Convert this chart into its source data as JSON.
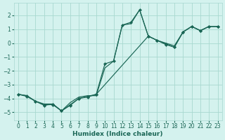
{
  "xlabel": "Humidex (Indice chaleur)",
  "bg_color": "#d4f2ee",
  "grid_color": "#a8d8d0",
  "line_color": "#1a6655",
  "xlim": [
    -0.5,
    23.5
  ],
  "ylim": [
    -5.6,
    2.9
  ],
  "yticks": [
    -5,
    -4,
    -3,
    -2,
    -1,
    0,
    1,
    2
  ],
  "xticks": [
    0,
    1,
    2,
    3,
    4,
    5,
    6,
    7,
    8,
    9,
    10,
    11,
    12,
    13,
    14,
    15,
    16,
    17,
    18,
    19,
    20,
    21,
    22,
    23
  ],
  "line1_x": [
    0,
    1,
    2,
    3,
    4,
    5,
    6,
    7,
    8,
    9,
    10,
    11,
    12,
    13,
    14,
    15,
    16,
    17,
    18,
    19,
    20,
    21,
    22,
    23
  ],
  "line1_y": [
    -3.7,
    -3.8,
    -4.2,
    -4.4,
    -4.4,
    -4.9,
    -4.3,
    -3.9,
    -3.8,
    -3.8,
    -1.8,
    -1.3,
    1.3,
    1.4,
    2.4,
    0.5,
    0.2,
    0.0,
    -0.2,
    0.8,
    1.2,
    0.9,
    1.2,
    1.2
  ],
  "line2_x": [
    0,
    1,
    2,
    3,
    4,
    5,
    6,
    7,
    8,
    9,
    10,
    11,
    12,
    13,
    14,
    15,
    16,
    17,
    18,
    19,
    20,
    21,
    22,
    23
  ],
  "line2_y": [
    -3.7,
    -3.8,
    -4.2,
    -4.5,
    -4.4,
    -4.9,
    -4.5,
    -4.0,
    -3.9,
    -3.7,
    -1.5,
    -1.3,
    1.3,
    1.5,
    2.4,
    0.5,
    0.2,
    -0.1,
    -0.3,
    0.8,
    1.2,
    0.9,
    1.2,
    1.2
  ],
  "line3_x": [
    0,
    1,
    2,
    3,
    4,
    5,
    6,
    7,
    8,
    9,
    15,
    16,
    17,
    18,
    19,
    20,
    21,
    22,
    23
  ],
  "line3_y": [
    -3.7,
    -3.85,
    -4.2,
    -4.45,
    -4.45,
    -4.9,
    -4.45,
    -4.0,
    -3.85,
    -3.7,
    0.5,
    0.2,
    -0.05,
    -0.3,
    0.8,
    1.2,
    0.9,
    1.2,
    1.2
  ]
}
